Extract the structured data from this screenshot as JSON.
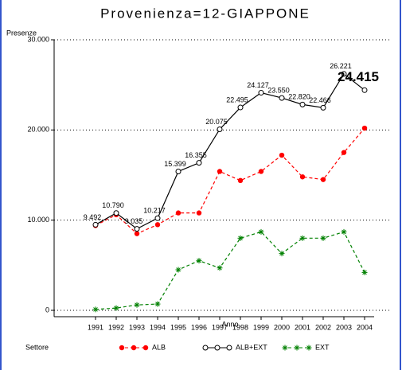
{
  "chart_data": {
    "type": "line",
    "title": "Provenienza=12-GIAPPONE",
    "ylabel": "Presenze",
    "xlabel": "Anno",
    "legend_title": "Settore",
    "categories": [
      "1991",
      "1992",
      "1993",
      "1994",
      "1995",
      "1996",
      "1997",
      "1998",
      "1999",
      "2000",
      "2001",
      "2002",
      "2003",
      "2004"
    ],
    "series": [
      {
        "name": "ALB",
        "color": "#ff0000",
        "marker": "dot",
        "dashed": true,
        "values": [
          9400,
          10600,
          8500,
          9500,
          10800,
          10800,
          15400,
          14400,
          15400,
          17200,
          14800,
          14500,
          17500,
          20200
        ]
      },
      {
        "name": "ALB+EXT",
        "color": "#000000",
        "marker": "circle",
        "dashed": false,
        "values": [
          9492,
          10790,
          9035,
          10217,
          15399,
          16355,
          20075,
          22495,
          24127,
          23550,
          22820,
          22466,
          26221,
          24415
        ],
        "value_labels": [
          "9.492",
          "10.790",
          "9.035",
          "10.217",
          "15.399",
          "16.355",
          "20.075",
          "22.495",
          "24.127",
          "23.550",
          "22.820",
          "22.466",
          "26.221",
          "24.415"
        ]
      },
      {
        "name": "EXT",
        "color": "#008000",
        "marker": "star",
        "dashed": true,
        "values": [
          100,
          250,
          600,
          700,
          4500,
          5500,
          4700,
          8000,
          8700,
          6300,
          8000,
          8000,
          8700,
          4200
        ]
      }
    ],
    "ylim": [
      0,
      30000
    ],
    "yticks": [
      0,
      {
        "value": 10000,
        "label": "10.000"
      },
      {
        "value": 20000,
        "label": "20.000"
      },
      {
        "value": 30000,
        "label": "30.000"
      }
    ],
    "grid": true
  }
}
